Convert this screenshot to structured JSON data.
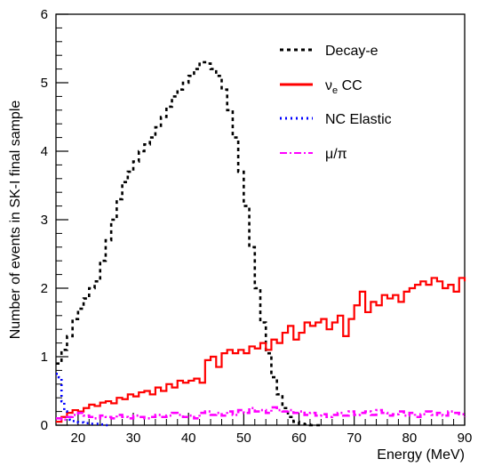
{
  "chart_data": {
    "type": "line",
    "xlabel": "Energy (MeV)",
    "ylabel": "Number of events in SK-I final sample",
    "xlim": [
      16,
      90
    ],
    "ylim": [
      0,
      6
    ],
    "x_ticks": [
      "20",
      "30",
      "40",
      "50",
      "60",
      "70",
      "80",
      "90"
    ],
    "y_ticks": [
      "0",
      "1",
      "2",
      "3",
      "4",
      "5",
      "6"
    ],
    "legend_position": "top-right",
    "series": [
      {
        "name": "Decay-e",
        "color": "#000000",
        "style": "dashed",
        "x": [
          16,
          17,
          18,
          19,
          20,
          21,
          22,
          23,
          24,
          25,
          26,
          27,
          28,
          29,
          30,
          31,
          32,
          33,
          34,
          35,
          36,
          37,
          38,
          39,
          40,
          41,
          42,
          43,
          44,
          45,
          46,
          47,
          48,
          49,
          50,
          51,
          52,
          53,
          54,
          55,
          56,
          57,
          58,
          59,
          60,
          61,
          62,
          63
        ],
        "values": [
          0.9,
          1.1,
          1.3,
          1.55,
          1.7,
          1.85,
          2.0,
          2.1,
          2.4,
          2.7,
          3.0,
          3.3,
          3.55,
          3.7,
          3.85,
          4.0,
          4.1,
          4.2,
          4.35,
          4.5,
          4.65,
          4.8,
          4.9,
          5.0,
          5.1,
          5.2,
          5.3,
          5.28,
          5.2,
          5.1,
          4.9,
          4.6,
          4.2,
          3.7,
          3.2,
          2.6,
          2.0,
          1.5,
          1.05,
          0.7,
          0.45,
          0.25,
          0.12,
          0.05,
          0.02,
          0.01,
          0.0,
          0.0
        ]
      },
      {
        "name": "ν_e CC",
        "color": "#ff0000",
        "style": "solid",
        "x": [
          16,
          17,
          18,
          19,
          20,
          21,
          22,
          23,
          24,
          25,
          26,
          27,
          28,
          29,
          30,
          31,
          32,
          33,
          34,
          35,
          36,
          37,
          38,
          39,
          40,
          41,
          42,
          43,
          44,
          45,
          46,
          47,
          48,
          49,
          50,
          51,
          52,
          53,
          54,
          55,
          56,
          57,
          58,
          59,
          60,
          61,
          62,
          63,
          64,
          65,
          66,
          67,
          68,
          69,
          70,
          71,
          72,
          73,
          74,
          75,
          76,
          77,
          78,
          79,
          80,
          81,
          82,
          83,
          84,
          85,
          86,
          87,
          88,
          89,
          90
        ],
        "values": [
          0.05,
          0.12,
          0.18,
          0.22,
          0.2,
          0.25,
          0.3,
          0.28,
          0.33,
          0.35,
          0.32,
          0.4,
          0.38,
          0.45,
          0.42,
          0.48,
          0.5,
          0.45,
          0.55,
          0.5,
          0.6,
          0.55,
          0.65,
          0.62,
          0.65,
          0.68,
          0.62,
          0.95,
          1.0,
          0.85,
          1.05,
          1.1,
          1.05,
          1.1,
          1.05,
          1.15,
          1.12,
          1.2,
          1.1,
          1.25,
          1.2,
          1.35,
          1.45,
          1.25,
          1.35,
          1.5,
          1.45,
          1.5,
          1.55,
          1.4,
          1.5,
          1.6,
          1.3,
          1.55,
          1.75,
          1.95,
          1.65,
          1.8,
          1.75,
          1.9,
          1.85,
          1.9,
          1.8,
          1.95,
          2.0,
          2.05,
          2.1,
          2.05,
          2.15,
          2.1,
          2.0,
          2.05,
          1.95,
          2.15,
          2.1
        ]
      },
      {
        "name": "NC Elastic",
        "color": "#0000ff",
        "style": "dotted",
        "x": [
          16,
          16.5,
          17,
          17.5,
          18,
          18.5,
          19,
          20,
          21,
          22,
          23,
          24,
          25
        ],
        "values": [
          0.75,
          0.7,
          0.35,
          0.2,
          0.1,
          0.08,
          0.06,
          0.04,
          0.03,
          0.02,
          0.02,
          0.01,
          0.0
        ]
      },
      {
        "name": "μ/π",
        "color": "#ff00ff",
        "style": "dashdot",
        "x": [
          16,
          17,
          18,
          19,
          20,
          21,
          22,
          23,
          24,
          25,
          26,
          27,
          28,
          29,
          30,
          31,
          32,
          33,
          34,
          35,
          36,
          37,
          38,
          39,
          40,
          41,
          42,
          43,
          44,
          45,
          46,
          47,
          48,
          49,
          50,
          51,
          52,
          53,
          54,
          55,
          56,
          57,
          58,
          59,
          60,
          61,
          62,
          63,
          64,
          65,
          66,
          67,
          68,
          69,
          70,
          71,
          72,
          73,
          74,
          75,
          76,
          77,
          78,
          79,
          80,
          81,
          82,
          83,
          84,
          85,
          86,
          87,
          88,
          89,
          90
        ],
        "values": [
          0.1,
          0.08,
          0.12,
          0.15,
          0.18,
          0.14,
          0.12,
          0.1,
          0.14,
          0.12,
          0.1,
          0.15,
          0.12,
          0.1,
          0.14,
          0.12,
          0.1,
          0.12,
          0.15,
          0.12,
          0.14,
          0.18,
          0.15,
          0.12,
          0.14,
          0.1,
          0.18,
          0.2,
          0.15,
          0.18,
          0.14,
          0.2,
          0.15,
          0.22,
          0.18,
          0.25,
          0.2,
          0.22,
          0.18,
          0.26,
          0.22,
          0.2,
          0.22,
          0.18,
          0.2,
          0.15,
          0.18,
          0.14,
          0.16,
          0.12,
          0.15,
          0.18,
          0.14,
          0.2,
          0.15,
          0.18,
          0.2,
          0.15,
          0.22,
          0.18,
          0.14,
          0.16,
          0.2,
          0.14,
          0.18,
          0.12,
          0.16,
          0.2,
          0.15,
          0.18,
          0.14,
          0.2,
          0.18,
          0.16,
          0.12
        ]
      }
    ]
  }
}
